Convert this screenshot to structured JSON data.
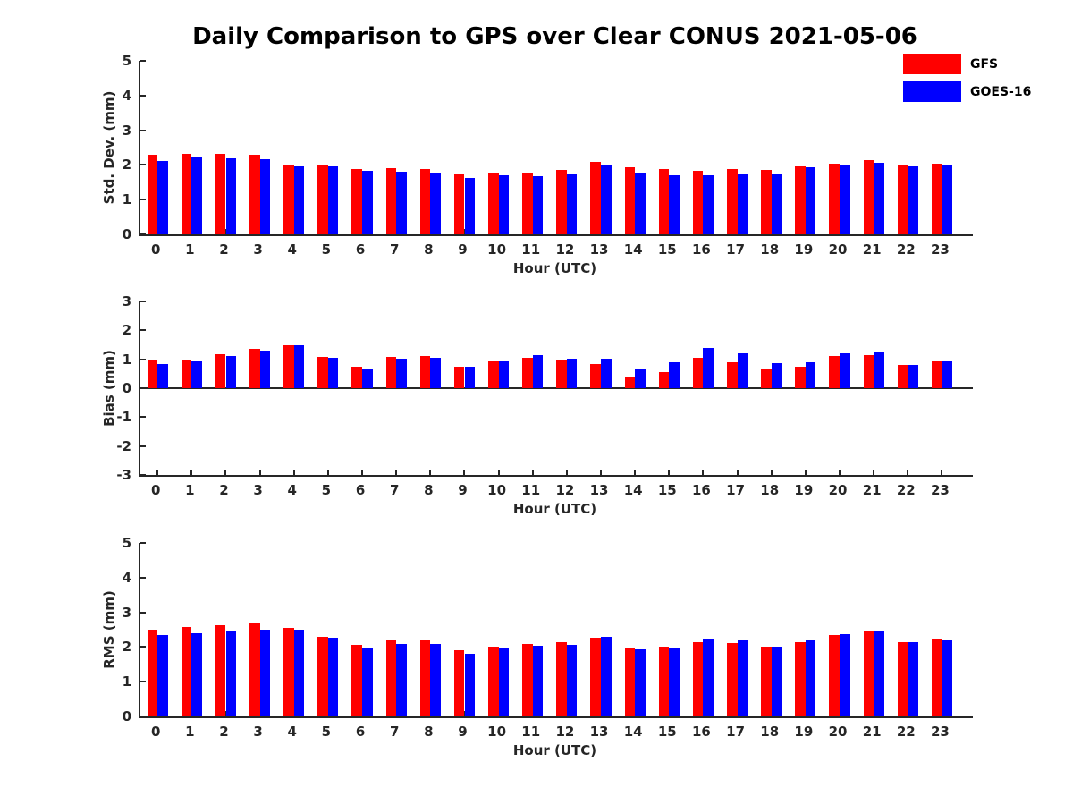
{
  "title": "Daily Comparison to GPS over Clear CONUS 2021-05-06",
  "colors": {
    "gfs": "#FF0000",
    "goes16": "#0000FF",
    "axis": "#262626"
  },
  "legend": [
    {
      "label": "GFS",
      "color": "#FF0000"
    },
    {
      "label": "GOES-16",
      "color": "#0000FF"
    }
  ],
  "chart_data": [
    {
      "type": "bar",
      "name": "std-dev-subplot",
      "ylabel": "Std. Dev. (mm)",
      "xlabel": "Hour (UTC)",
      "ylim": [
        0,
        5
      ],
      "yticks": [
        "0",
        "1",
        "2",
        "3",
        "4",
        "5"
      ],
      "grid": false,
      "legend_position": "top-right",
      "categories": [
        "0",
        "1",
        "2",
        "3",
        "4",
        "5",
        "6",
        "7",
        "8",
        "9",
        "10",
        "11",
        "12",
        "13",
        "14",
        "15",
        "16",
        "17",
        "18",
        "19",
        "20",
        "21",
        "22",
        "23"
      ],
      "series": [
        {
          "name": "GFS",
          "color": "#FF0000",
          "values": [
            2.3,
            2.33,
            2.33,
            2.3,
            2.01,
            2.0,
            1.88,
            1.9,
            1.87,
            1.72,
            1.77,
            1.77,
            1.86,
            2.09,
            1.93,
            1.89,
            1.83,
            1.89,
            1.86,
            1.97,
            2.04,
            2.15,
            1.98,
            2.05
          ]
        },
        {
          "name": "GOES-16",
          "color": "#0000FF",
          "values": [
            2.12,
            2.21,
            2.2,
            2.16,
            1.95,
            1.95,
            1.82,
            1.8,
            1.77,
            1.63,
            1.7,
            1.67,
            1.74,
            2.0,
            1.77,
            1.71,
            1.71,
            1.76,
            1.76,
            1.93,
            1.99,
            2.07,
            1.96,
            2.0
          ]
        }
      ]
    },
    {
      "type": "bar",
      "name": "bias-subplot",
      "ylabel": "Bias (mm)",
      "xlabel": "Hour (UTC)",
      "ylim": [
        -3,
        3
      ],
      "yticks": [
        "-3",
        "-2",
        "-1",
        "0",
        "1",
        "2",
        "3"
      ],
      "grid": false,
      "categories": [
        "0",
        "1",
        "2",
        "3",
        "4",
        "5",
        "6",
        "7",
        "8",
        "9",
        "10",
        "11",
        "12",
        "13",
        "14",
        "15",
        "16",
        "17",
        "18",
        "19",
        "20",
        "21",
        "22",
        "23"
      ],
      "series": [
        {
          "name": "GFS",
          "color": "#FF0000",
          "values": [
            0.95,
            0.98,
            1.17,
            1.37,
            1.5,
            1.08,
            0.73,
            1.09,
            1.1,
            0.75,
            0.94,
            1.04,
            0.95,
            0.85,
            0.38,
            0.56,
            1.05,
            0.9,
            0.65,
            0.75,
            1.12,
            1.15,
            0.8,
            0.92
          ]
        },
        {
          "name": "GOES-16",
          "color": "#0000FF",
          "values": [
            0.85,
            0.92,
            1.1,
            1.3,
            1.5,
            1.05,
            0.67,
            1.03,
            1.04,
            0.75,
            0.94,
            1.15,
            1.03,
            1.02,
            0.68,
            0.9,
            1.38,
            1.22,
            0.87,
            0.9,
            1.2,
            1.28,
            0.82,
            0.94
          ]
        }
      ]
    },
    {
      "type": "bar",
      "name": "rms-subplot",
      "ylabel": "RMS (mm)",
      "xlabel": "Hour (UTC)",
      "ylim": [
        0,
        5
      ],
      "yticks": [
        "0",
        "1",
        "2",
        "3",
        "4",
        "5"
      ],
      "grid": false,
      "categories": [
        "0",
        "1",
        "2",
        "3",
        "4",
        "5",
        "6",
        "7",
        "8",
        "9",
        "10",
        "11",
        "12",
        "13",
        "14",
        "15",
        "16",
        "17",
        "18",
        "19",
        "20",
        "21",
        "22",
        "23"
      ],
      "series": [
        {
          "name": "GFS",
          "color": "#FF0000",
          "values": [
            2.51,
            2.57,
            2.64,
            2.72,
            2.54,
            2.3,
            2.06,
            2.21,
            2.23,
            1.9,
            2.02,
            2.1,
            2.14,
            2.28,
            1.97,
            2.02,
            2.15,
            2.12,
            2.0,
            2.15,
            2.35,
            2.47,
            2.15,
            2.25
          ]
        },
        {
          "name": "GOES-16",
          "color": "#0000FF",
          "values": [
            2.34,
            2.41,
            2.47,
            2.5,
            2.51,
            2.26,
            1.95,
            2.1,
            2.08,
            1.8,
            1.97,
            2.05,
            2.07,
            2.29,
            1.93,
            1.97,
            2.24,
            2.18,
            2.0,
            2.18,
            2.36,
            2.47,
            2.15,
            2.22
          ]
        }
      ]
    }
  ]
}
